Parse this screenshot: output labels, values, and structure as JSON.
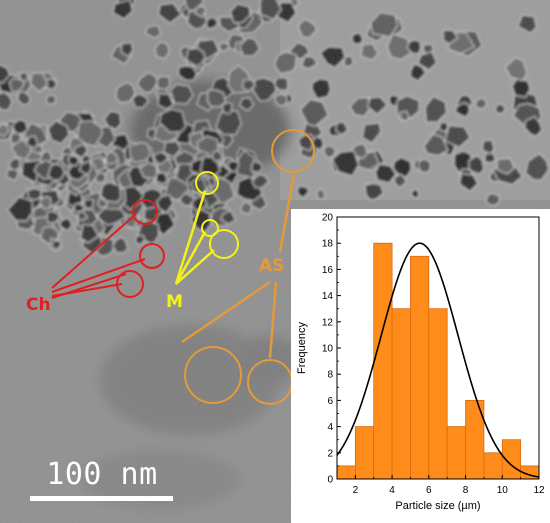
{
  "image": {
    "scale_bar_label": "100 nm",
    "colors": {
      "chains": "#e0201f",
      "micelles": "#f2f21a",
      "aggregates": "#e59a3a",
      "bars": "#ff8c1a",
      "fit_curve": "#000000"
    }
  },
  "annotations": {
    "chains": "Ch",
    "micelles": "M",
    "aggregates": "AS"
  },
  "chart_data": {
    "type": "bar",
    "xlabel": "Particle size (µm)",
    "ylabel": "Frequency",
    "xlim": [
      1,
      12
    ],
    "ylim": [
      0,
      20
    ],
    "xticks": [
      2,
      4,
      6,
      8,
      10,
      12
    ],
    "yticks": [
      0,
      2,
      4,
      6,
      8,
      10,
      12,
      14,
      16,
      18,
      20
    ],
    "bins": [
      {
        "start": 1,
        "end": 2,
        "value": 1
      },
      {
        "start": 2,
        "end": 3,
        "value": 4
      },
      {
        "start": 3,
        "end": 4,
        "value": 18
      },
      {
        "start": 4,
        "end": 5,
        "value": 13
      },
      {
        "start": 5,
        "end": 6,
        "value": 17
      },
      {
        "start": 6,
        "end": 7,
        "value": 13
      },
      {
        "start": 7,
        "end": 8,
        "value": 4
      },
      {
        "start": 8,
        "end": 9,
        "value": 6
      },
      {
        "start": 9,
        "end": 10,
        "value": 2
      },
      {
        "start": 10,
        "end": 11,
        "value": 3
      },
      {
        "start": 11,
        "end": 12,
        "value": 1
      }
    ],
    "fit": {
      "type": "gaussian",
      "mean": 5.5,
      "sd": 2.1,
      "peak": 18
    }
  }
}
